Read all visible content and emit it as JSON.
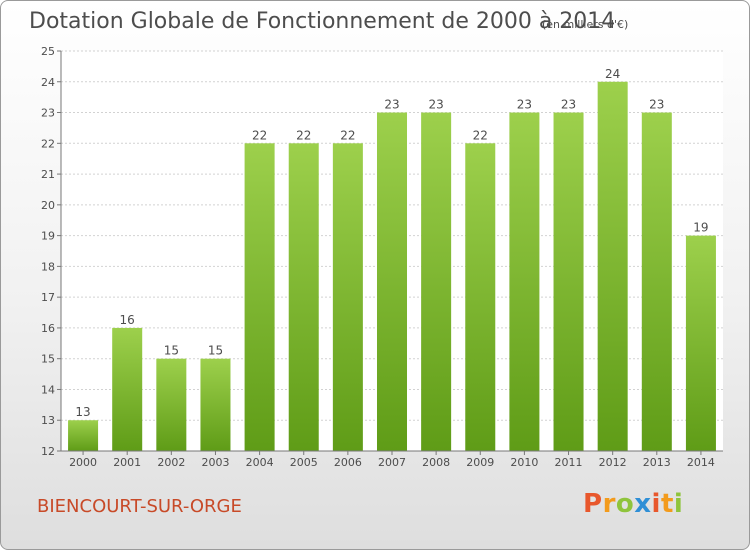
{
  "title": "Dotation Globale de Fonctionnement de 2000 à 2014",
  "subtitle": "(en milliers d'€)",
  "footer": {
    "place": "BIENCOURT-SUR-ORGE"
  },
  "logo": {
    "text": "Proxiti",
    "letters": [
      {
        "ch": "P",
        "color": "#e8572c"
      },
      {
        "ch": "r",
        "color": "#f39b1c"
      },
      {
        "ch": "o",
        "color": "#8fc43c"
      },
      {
        "ch": "x",
        "color": "#2f8fd6"
      },
      {
        "ch": "i",
        "color": "#e8572c"
      },
      {
        "ch": "t",
        "color": "#f39b1c"
      },
      {
        "ch": "i",
        "color": "#8fc43c"
      }
    ]
  },
  "colors": {
    "bar_top": "#9dd04c",
    "bar_bottom": "#5f9c17",
    "grid": "#d2d2d2",
    "axis": "#777777",
    "text": "#4d4d4d"
  },
  "chart_data": {
    "type": "bar",
    "title": "Dotation Globale de Fonctionnement de 2000 à 2014",
    "subtitle": "(en milliers d'€)",
    "categories": [
      "2000",
      "2001",
      "2002",
      "2003",
      "2004",
      "2005",
      "2006",
      "2007",
      "2008",
      "2009",
      "2010",
      "2011",
      "2012",
      "2013",
      "2014"
    ],
    "values": [
      13,
      16,
      15,
      15,
      22,
      22,
      22,
      23,
      23,
      22,
      23,
      23,
      24,
      23,
      19
    ],
    "ylim": [
      12,
      25
    ],
    "yticks": [
      12,
      13,
      14,
      15,
      16,
      17,
      18,
      19,
      20,
      21,
      22,
      23,
      24,
      25
    ],
    "grid": true,
    "data_labels": true
  }
}
